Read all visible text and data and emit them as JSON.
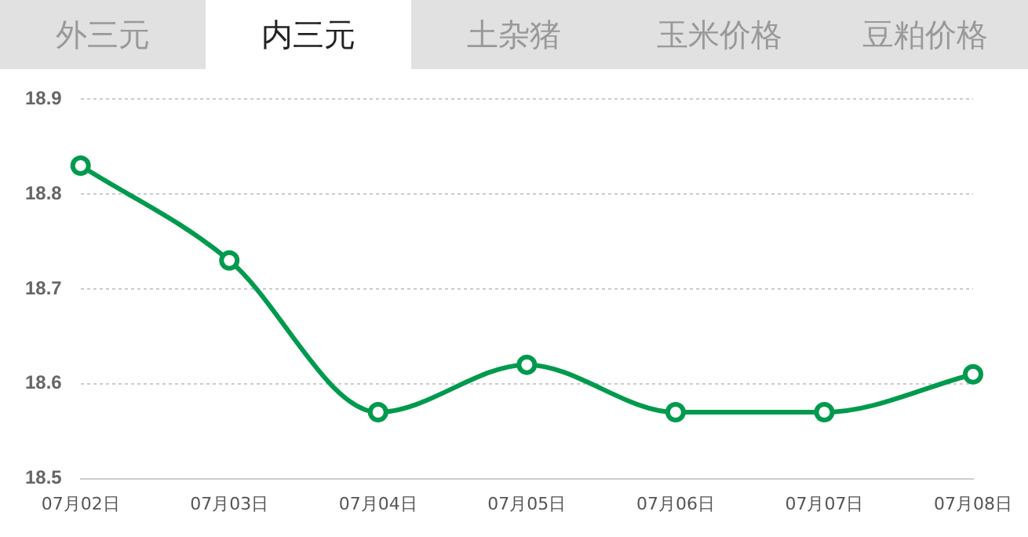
{
  "chart_data": {
    "type": "line",
    "annotations": [
      "外三元",
      "内三元",
      "土杂猪",
      "玉米价格",
      "豆粕价格"
    ],
    "categories": [
      "07月02日",
      "07月03日",
      "07月04日",
      "07月05日",
      "07月06日",
      "07月07日",
      "07月08日"
    ],
    "series": [
      {
        "color": "#009a4e",
        "values": [
          18.83,
          18.73,
          18.57,
          18.62,
          18.57,
          18.57,
          18.61
        ]
      }
    ],
    "ylim": [
      18.5,
      18.9
    ],
    "yticks": [
      18.5,
      18.6,
      18.7,
      18.8,
      18.9
    ],
    "grid": "y",
    "legend": false,
    "marker": "circle",
    "line_style": "solid"
  }
}
